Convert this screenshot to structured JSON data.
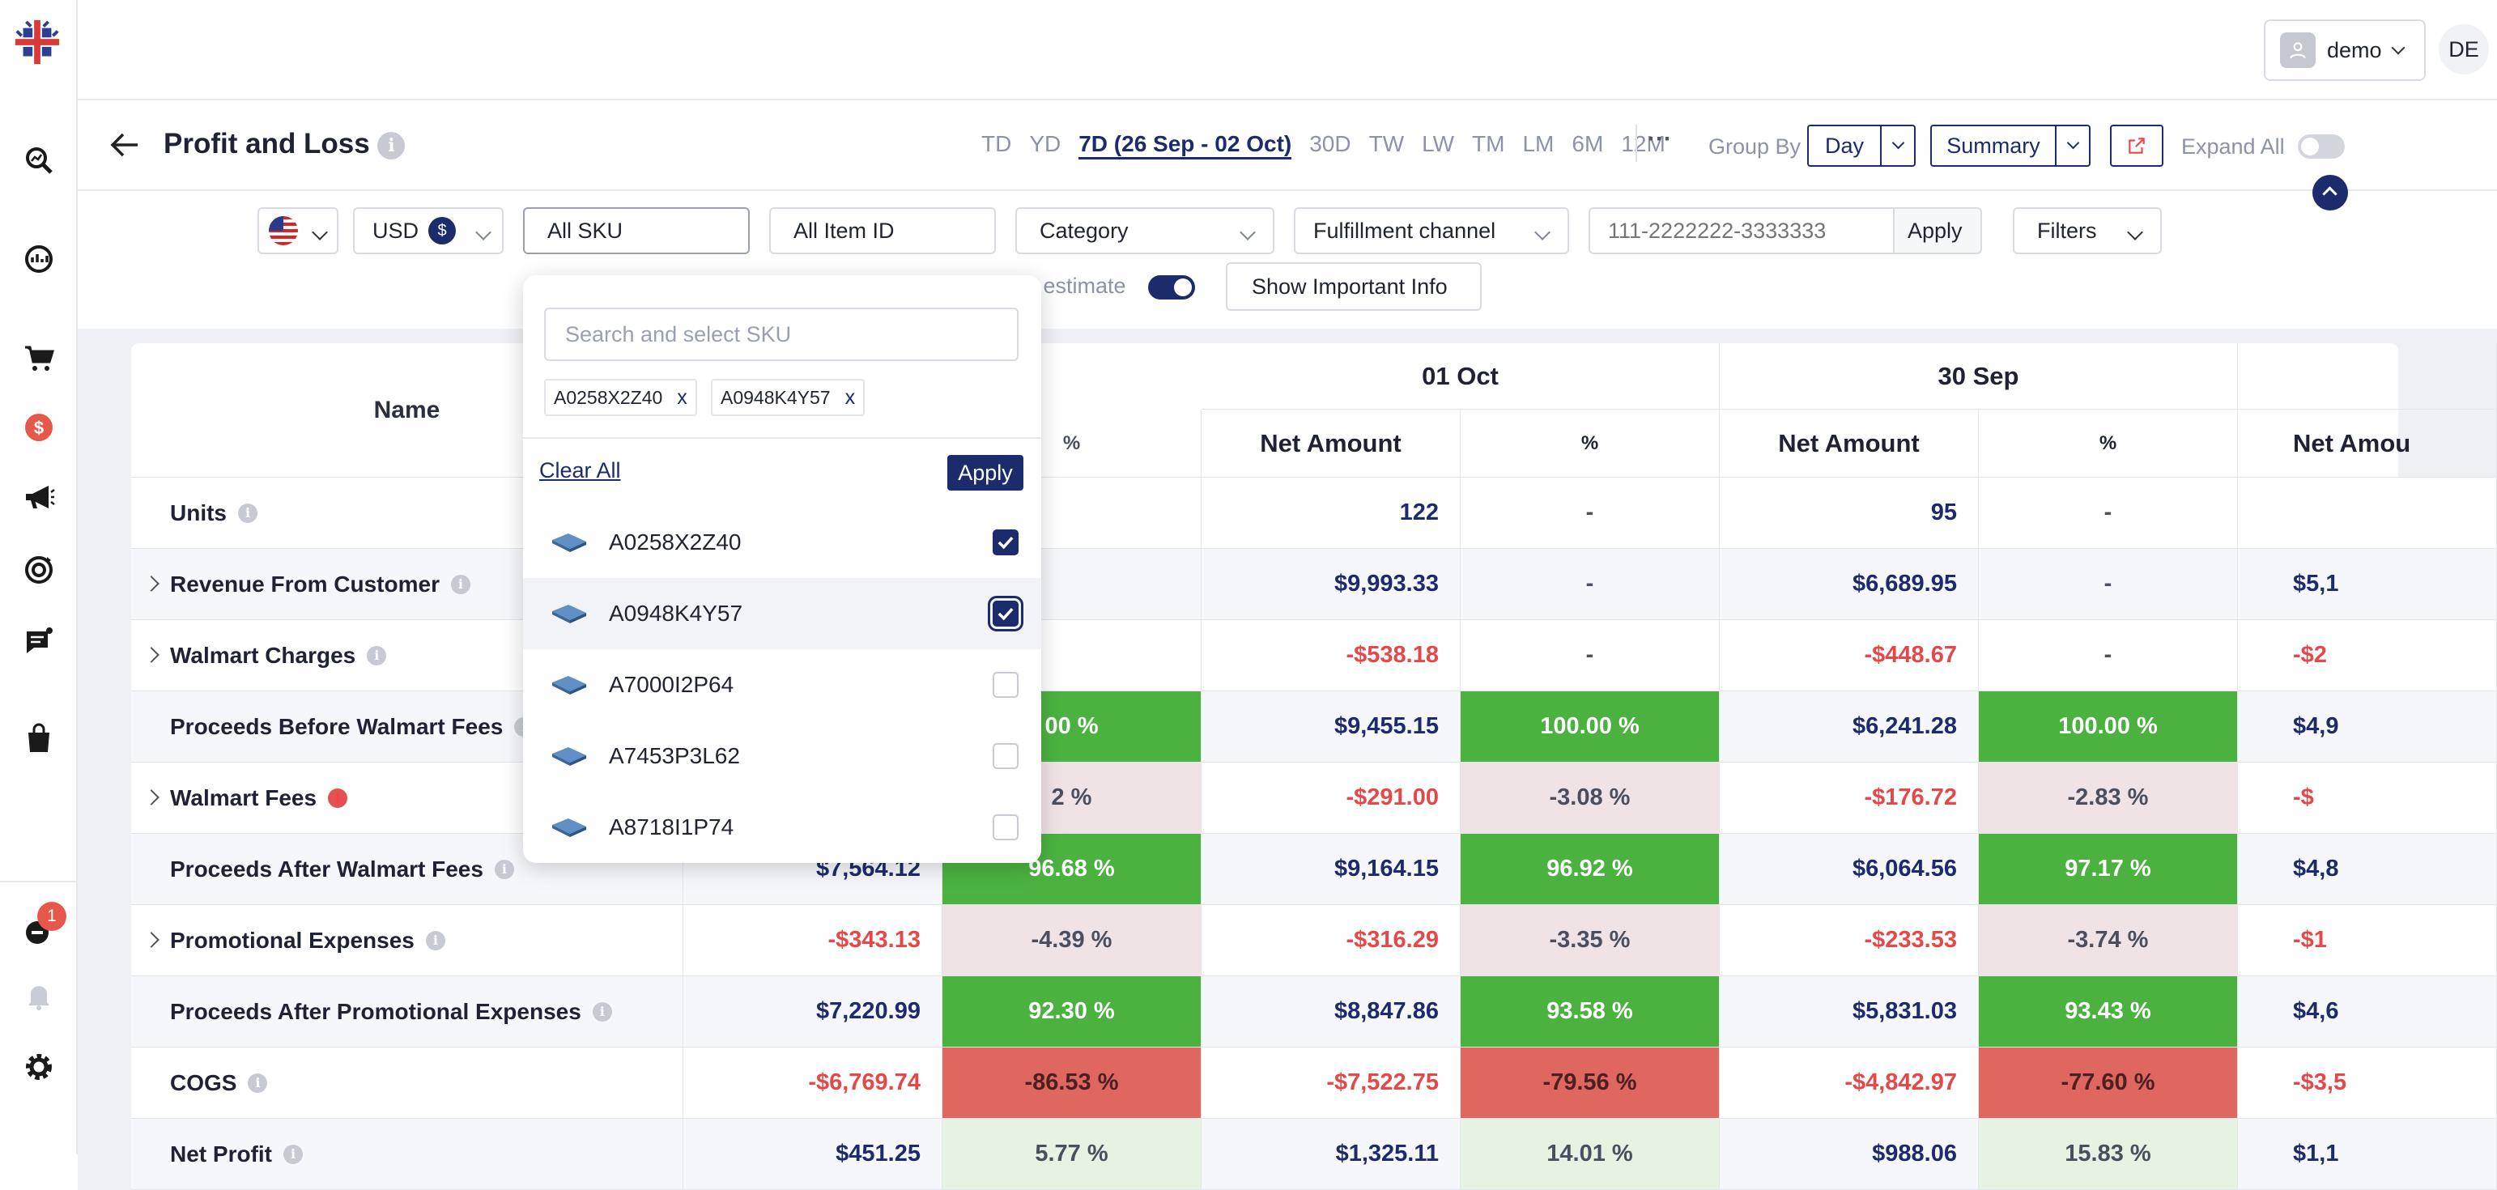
{
  "user": {
    "name": "demo",
    "initials": "DE"
  },
  "notifications": {
    "count": "1"
  },
  "page": {
    "title": "Profit and Loss"
  },
  "date_ranges": [
    "TD",
    "YD",
    "7D (26 Sep - 02 Oct)",
    "30D",
    "TW",
    "LW",
    "TM",
    "LM",
    "6M",
    "12M"
  ],
  "more": "⋯",
  "group_by": {
    "label": "Group By",
    "value": "Day",
    "view": "Summary"
  },
  "expand_all": {
    "label": "Expand All",
    "on": false
  },
  "filters": {
    "currency": "USD",
    "currency_symbol": "$",
    "sku": "All SKU",
    "item_id": "All Item ID",
    "category": "Category",
    "fulfillment": "Fulfillment channel",
    "order_placeholder": "111-2222222-3333333",
    "apply": "Apply",
    "filters": "Filters",
    "estimate_label": "e estimate",
    "show_info": "Show Important Info"
  },
  "sku_dropdown": {
    "placeholder": "Search and select SKU",
    "chips": [
      "A0258X2Z40",
      "A0948K4Y57"
    ],
    "chip_remove": "x",
    "clear_all": "Clear All",
    "apply": "Apply",
    "options": [
      {
        "sku": "A0258X2Z40",
        "checked": true
      },
      {
        "sku": "A0948K4Y57",
        "checked": true
      },
      {
        "sku": "A7000I2P64",
        "checked": false
      },
      {
        "sku": "A7453P3L62",
        "checked": false
      },
      {
        "sku": "A8718I1P74",
        "checked": false
      }
    ]
  },
  "table": {
    "name_header": "Name",
    "dates": [
      "01 Oct",
      "30 Sep"
    ],
    "net_amount": "Net Amount",
    "pct": "%",
    "partial": {
      "pct_header": "%",
      "net_header": "Net Amou"
    },
    "rows": [
      {
        "name": "Units",
        "expandable": false,
        "alert": false,
        "c1": "",
        "p1": "",
        "c2": "122",
        "p2": "-",
        "c3": "95",
        "p3": "-",
        "c4": ""
      },
      {
        "name": "Revenue From Customer",
        "expandable": true,
        "alert": false,
        "c1": "",
        "p1": "",
        "c2": "$9,993.33",
        "p2": "-",
        "c3": "$6,689.95",
        "p3": "-",
        "c4": "$5,1"
      },
      {
        "name": "Walmart Charges",
        "expandable": true,
        "alert": false,
        "c1": "",
        "p1": "",
        "c2": "-$538.18",
        "p2": "-",
        "c3": "-$448.67",
        "p3": "-",
        "c4": "-$2"
      },
      {
        "name": "Proceeds Before Walmart Fees",
        "expandable": false,
        "alert": false,
        "c1": "",
        "p1": "00 %",
        "c2": "$9,455.15",
        "p2": "100.00 %",
        "c3": "$6,241.28",
        "p3": "100.00 %",
        "c4": "$4,9"
      },
      {
        "name": "Walmart Fees",
        "expandable": true,
        "alert": true,
        "c1": "",
        "p1": "2 %",
        "c2": "-$291.00",
        "p2": "-3.08 %",
        "c3": "-$176.72",
        "p3": "-2.83 %",
        "c4": "-$"
      },
      {
        "name": "Proceeds After Walmart Fees",
        "expandable": false,
        "alert": false,
        "c1": "$7,564.12",
        "p1": "96.68 %",
        "c2": "$9,164.15",
        "p2": "96.92 %",
        "c3": "$6,064.56",
        "p3": "97.17 %",
        "c4": "$4,8"
      },
      {
        "name": "Promotional Expenses",
        "expandable": true,
        "alert": false,
        "c1": "-$343.13",
        "p1": "-4.39 %",
        "c2": "-$316.29",
        "p2": "-3.35 %",
        "c3": "-$233.53",
        "p3": "-3.74 %",
        "c4": "-$1"
      },
      {
        "name": "Proceeds After Promotional Expenses",
        "expandable": false,
        "alert": false,
        "c1": "$7,220.99",
        "p1": "92.30 %",
        "c2": "$8,847.86",
        "p2": "93.58 %",
        "c3": "$5,831.03",
        "p3": "93.43 %",
        "c4": "$4,6"
      },
      {
        "name": "COGS",
        "expandable": false,
        "alert": false,
        "c1": "-$6,769.74",
        "p1": "-86.53 %",
        "c2": "-$7,522.75",
        "p2": "-79.56 %",
        "c3": "-$4,842.97",
        "p3": "-77.60 %",
        "c4": "-$3,5"
      },
      {
        "name": "Net Profit",
        "expandable": false,
        "alert": false,
        "c1": "$451.25",
        "p1": "5.77 %",
        "c2": "$1,325.11",
        "p2": "14.01 %",
        "c3": "$988.06",
        "p3": "15.83 %",
        "c4": "$1,1"
      }
    ]
  }
}
